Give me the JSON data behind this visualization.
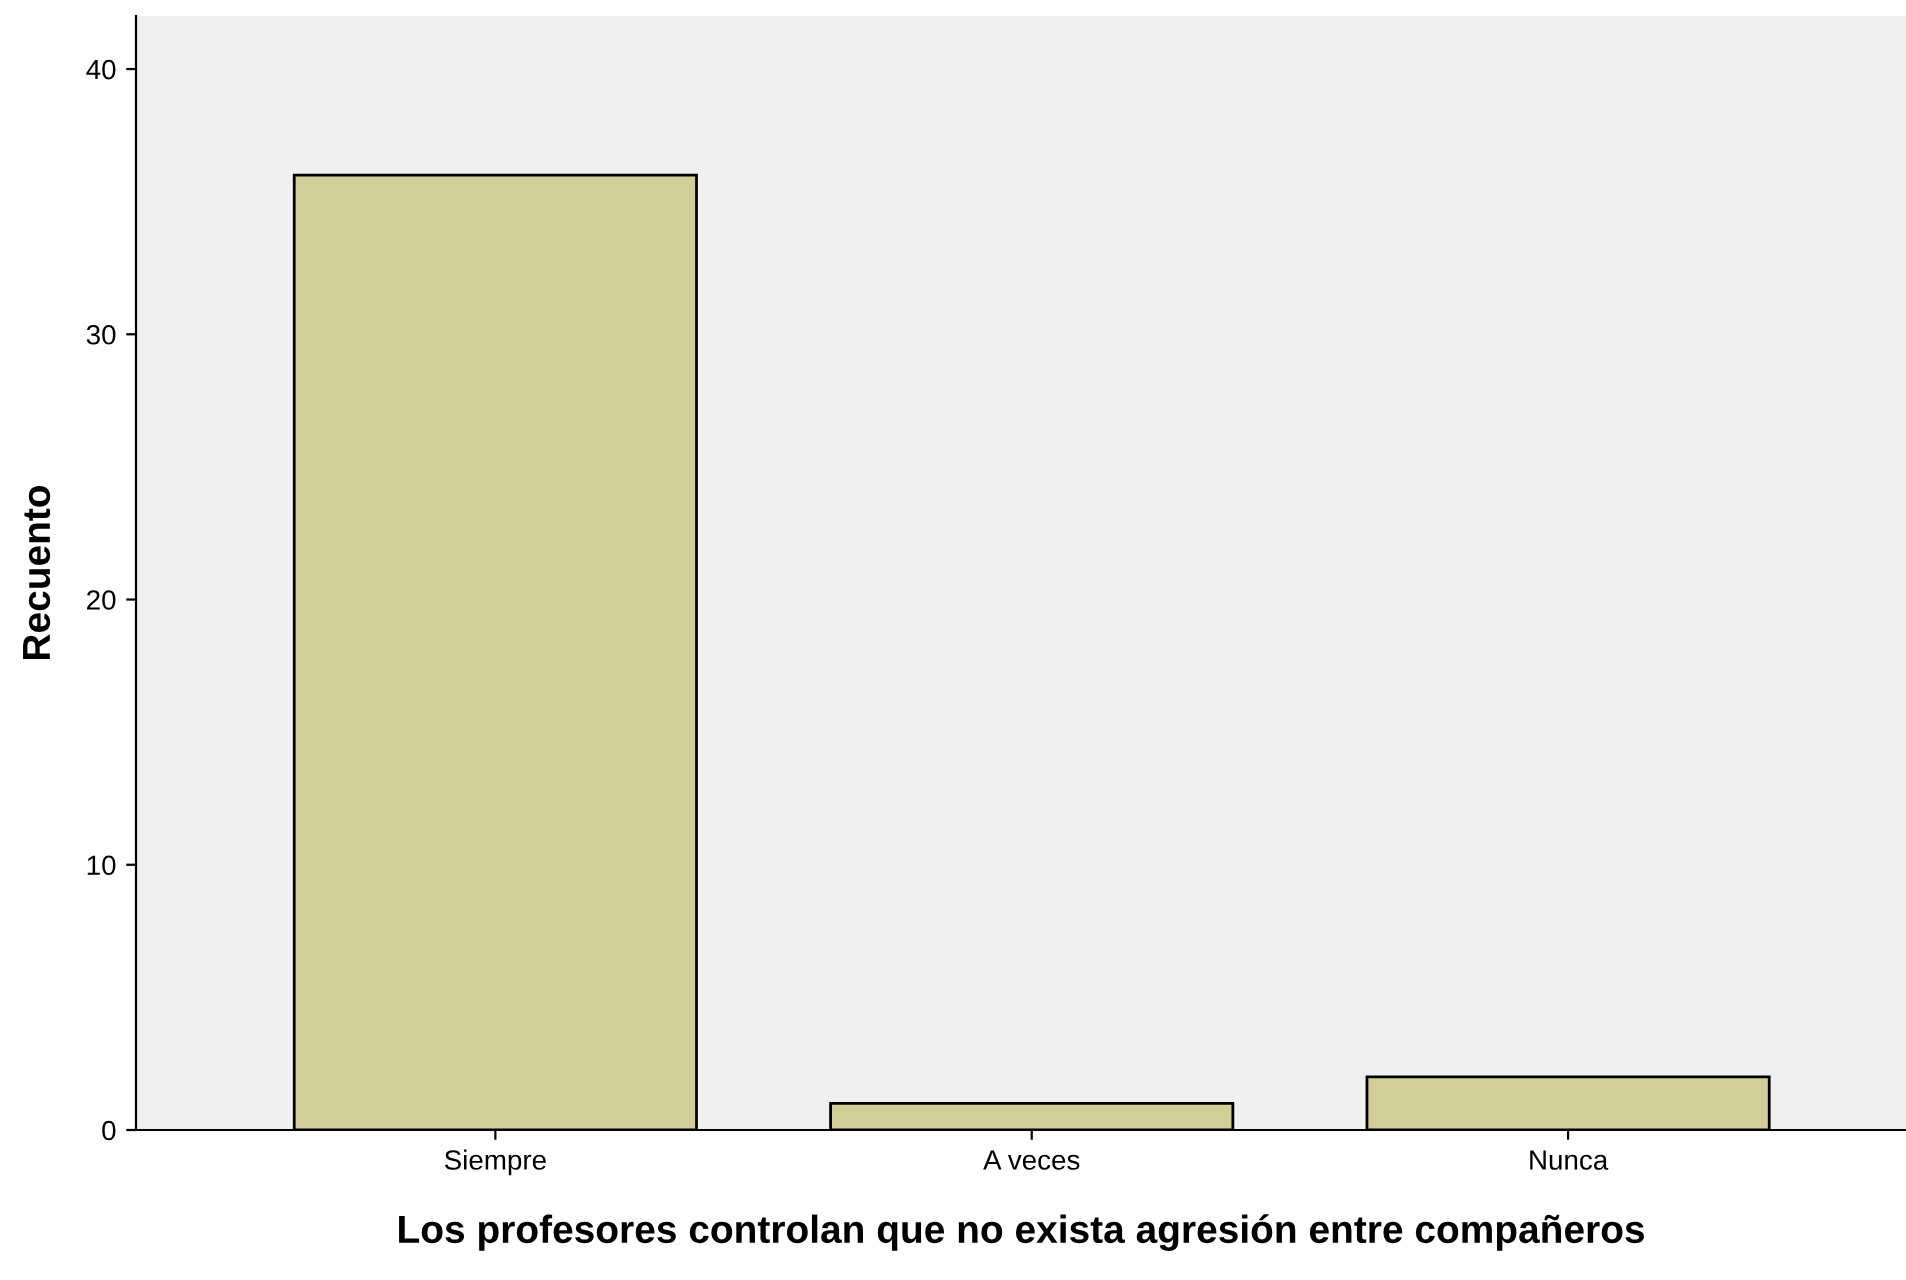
{
  "chart_data": {
    "type": "bar",
    "xlabel": "Los profesores controlan que no exista agresión entre compañeros",
    "ylabel": "Recuento",
    "categories": [
      "Siempre",
      "A veces",
      "Nunca"
    ],
    "values": [
      36,
      1,
      2
    ],
    "color": "#d3ce97",
    "ylim": [
      0,
      42
    ],
    "yticks": [
      0,
      10,
      20,
      30,
      40
    ],
    "grid": false,
    "legend": false
  }
}
